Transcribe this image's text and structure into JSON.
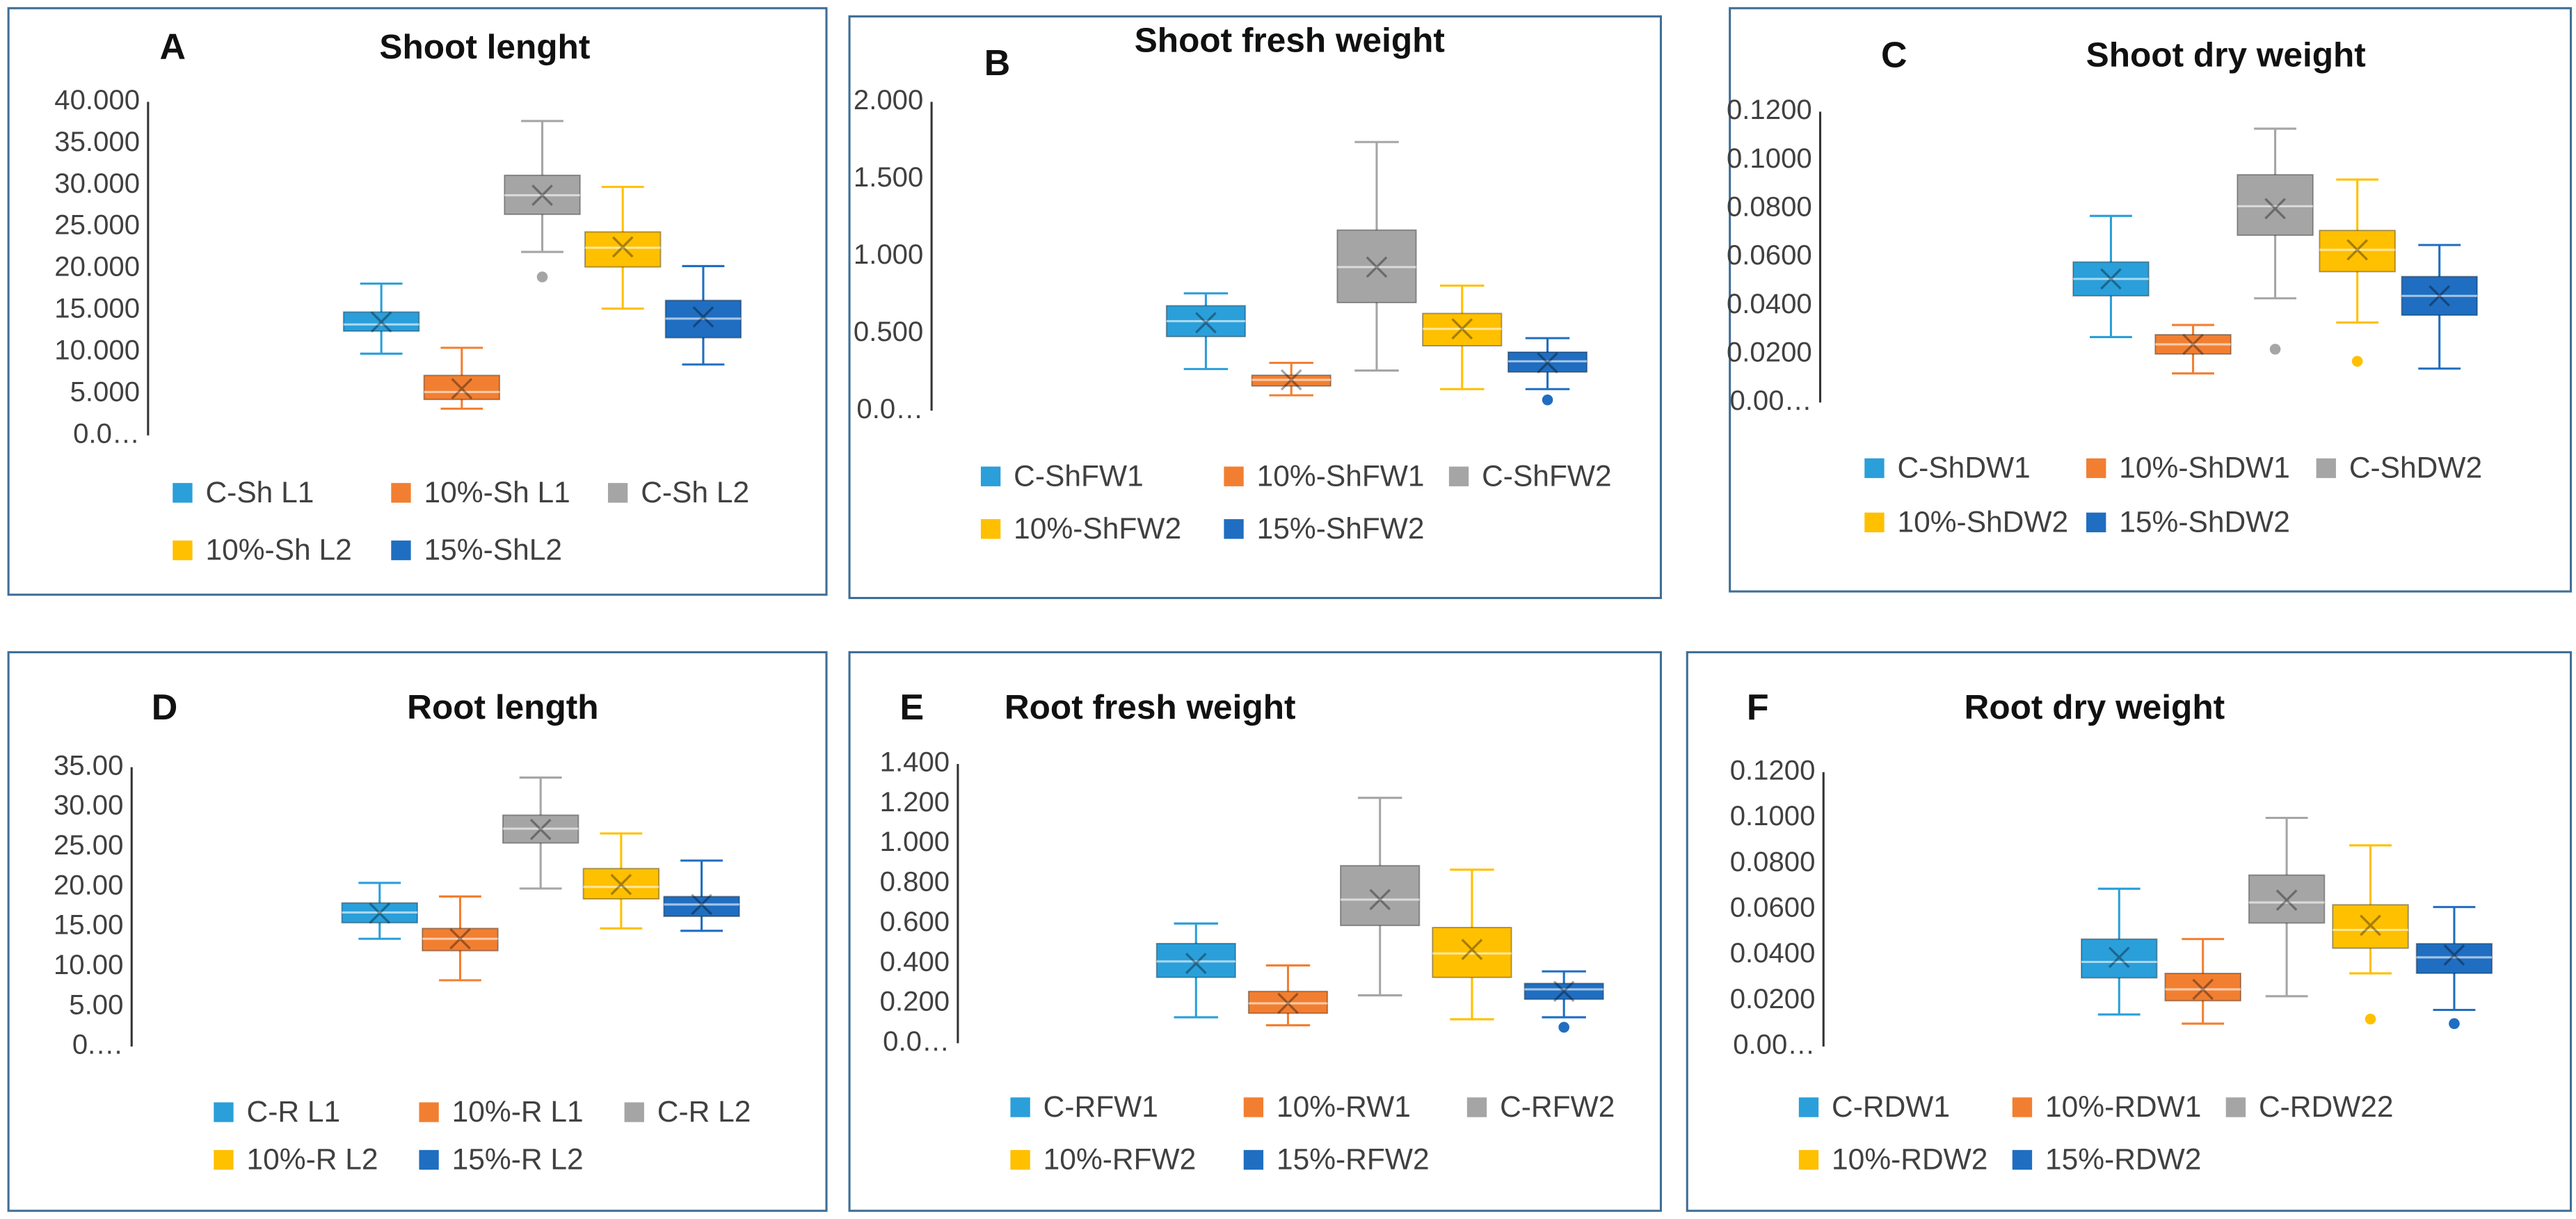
{
  "chart_data": [
    {
      "type": "box",
      "label": "A",
      "title": "Shoot lenght",
      "ylim": [
        0,
        40
      ],
      "yticks": [
        {
          "value": 0,
          "label": "0.0…"
        },
        {
          "value": 5,
          "label": "5.000"
        },
        {
          "value": 10,
          "label": "10.000"
        },
        {
          "value": 15,
          "label": "15.000"
        },
        {
          "value": 20,
          "label": "20.000"
        },
        {
          "value": 25,
          "label": "25.000"
        },
        {
          "value": 30,
          "label": "30.000"
        },
        {
          "value": 35,
          "label": "35.000"
        },
        {
          "value": 40,
          "label": "40.000"
        }
      ],
      "series": [
        {
          "name": "C-Sh L1",
          "color": "#2A9FDA",
          "min": 9.8,
          "q1": 12.5,
          "median": 13.3,
          "q3": 14.8,
          "max": 18.2,
          "mean": 13.6,
          "outliers": []
        },
        {
          "name": "10%-Sh L1",
          "color": "#F27F31",
          "min": 3.2,
          "q1": 4.3,
          "median": 5.2,
          "q3": 7.2,
          "max": 10.5,
          "mean": 5.6,
          "outliers": []
        },
        {
          "name": "C-Sh L2",
          "color": "#A5A5A5",
          "min": 22,
          "q1": 26.5,
          "median": 28.8,
          "q3": 31.2,
          "max": 37.7,
          "mean": 28.8,
          "outliers": [
            19
          ]
        },
        {
          "name": "10%-Sh L2",
          "color": "#FFC000",
          "min": 15.2,
          "q1": 20.2,
          "median": 22.5,
          "q3": 24.4,
          "max": 29.8,
          "mean": 22.6,
          "outliers": []
        },
        {
          "name": "15%-ShL2",
          "color": "#1F6EC1",
          "min": 8.5,
          "q1": 11.7,
          "median": 14,
          "q3": 16.2,
          "max": 20.3,
          "mean": 14.2,
          "outliers": []
        }
      ]
    },
    {
      "type": "box",
      "label": "B",
      "title": "Shoot fresh weight",
      "ylim": [
        0,
        2
      ],
      "yticks": [
        {
          "value": 0,
          "label": "0.0…"
        },
        {
          "value": 0.5,
          "label": "0.500"
        },
        {
          "value": 1,
          "label": "1.000"
        },
        {
          "value": 1.5,
          "label": "1.500"
        },
        {
          "value": 2,
          "label": "2.000"
        }
      ],
      "series": [
        {
          "name": "C-ShFW1",
          "color": "#2A9FDA",
          "min": 0.27,
          "q1": 0.48,
          "median": 0.58,
          "q3": 0.68,
          "max": 0.76,
          "mean": 0.57,
          "outliers": []
        },
        {
          "name": "10%-ShFW1",
          "color": "#F27F31",
          "min": 0.1,
          "q1": 0.16,
          "median": 0.2,
          "q3": 0.23,
          "max": 0.31,
          "mean": 0.2,
          "outliers": []
        },
        {
          "name": "C-ShFW2",
          "color": "#A5A5A5",
          "min": 0.26,
          "q1": 0.7,
          "median": 0.93,
          "q3": 1.17,
          "max": 1.74,
          "mean": 0.93,
          "outliers": []
        },
        {
          "name": "10%-ShFW2",
          "color": "#FFC000",
          "min": 0.14,
          "q1": 0.42,
          "median": 0.53,
          "q3": 0.63,
          "max": 0.81,
          "mean": 0.53,
          "outliers": []
        },
        {
          "name": "15%-ShFW2",
          "color": "#1F6EC1",
          "min": 0.14,
          "q1": 0.25,
          "median": 0.32,
          "q3": 0.38,
          "max": 0.47,
          "mean": 0.31,
          "outliers": [
            0.07
          ]
        }
      ]
    },
    {
      "type": "box",
      "label": "C",
      "title": "Shoot dry weight",
      "ylim": [
        0,
        0.12
      ],
      "yticks": [
        {
          "value": 0,
          "label": "0.00…"
        },
        {
          "value": 0.02,
          "label": "0.0200"
        },
        {
          "value": 0.04,
          "label": "0.0400"
        },
        {
          "value": 0.06,
          "label": "0.0600"
        },
        {
          "value": 0.08,
          "label": "0.0800"
        },
        {
          "value": 0.1,
          "label": "0.1000"
        },
        {
          "value": 0.12,
          "label": "0.1200"
        }
      ],
      "series": [
        {
          "name": "C-ShDW1",
          "color": "#2A9FDA",
          "min": 0.027,
          "q1": 0.044,
          "median": 0.051,
          "q3": 0.058,
          "max": 0.077,
          "mean": 0.051,
          "outliers": []
        },
        {
          "name": "10%-ShDW1",
          "color": "#F27F31",
          "min": 0.012,
          "q1": 0.02,
          "median": 0.024,
          "q3": 0.028,
          "max": 0.032,
          "mean": 0.024,
          "outliers": []
        },
        {
          "name": "C-ShDW2",
          "color": "#A5A5A5",
          "min": 0.043,
          "q1": 0.069,
          "median": 0.081,
          "q3": 0.094,
          "max": 0.113,
          "mean": 0.08,
          "outliers": [
            0.022
          ]
        },
        {
          "name": "10%-ShDW2",
          "color": "#FFC000",
          "min": 0.033,
          "q1": 0.054,
          "median": 0.063,
          "q3": 0.071,
          "max": 0.092,
          "mean": 0.063,
          "outliers": [
            0.017
          ]
        },
        {
          "name": "15%-ShDW2",
          "color": "#1F6EC1",
          "min": 0.014,
          "q1": 0.036,
          "median": 0.044,
          "q3": 0.052,
          "max": 0.065,
          "mean": 0.044,
          "outliers": []
        }
      ]
    },
    {
      "type": "box",
      "label": "D",
      "title": "Root length",
      "ylim": [
        0,
        35
      ],
      "yticks": [
        {
          "value": 0,
          "label": "0.…"
        },
        {
          "value": 5,
          "label": "5.00"
        },
        {
          "value": 10,
          "label": "10.00"
        },
        {
          "value": 15,
          "label": "15.00"
        },
        {
          "value": 20,
          "label": "20.00"
        },
        {
          "value": 25,
          "label": "25.00"
        },
        {
          "value": 30,
          "label": "30.00"
        },
        {
          "value": 35,
          "label": "35.00"
        }
      ],
      "series": [
        {
          "name": "C-R L1",
          "color": "#2A9FDA",
          "min": 13.5,
          "q1": 15.5,
          "median": 16.8,
          "q3": 18,
          "max": 20.5,
          "mean": 16.7,
          "outliers": []
        },
        {
          "name": "10%-R L1",
          "color": "#F27F31",
          "min": 8.3,
          "q1": 12,
          "median": 13.5,
          "q3": 14.8,
          "max": 18.8,
          "mean": 13.5,
          "outliers": []
        },
        {
          "name": "C-R L2",
          "color": "#A5A5A5",
          "min": 19.8,
          "q1": 25.5,
          "median": 27.3,
          "q3": 29,
          "max": 33.7,
          "mean": 27.2,
          "outliers": []
        },
        {
          "name": "10%-R L2",
          "color": "#FFC000",
          "min": 14.8,
          "q1": 18.5,
          "median": 20,
          "q3": 22.3,
          "max": 26.7,
          "mean": 20.3,
          "outliers": []
        },
        {
          "name": "15%-R L2",
          "color": "#1F6EC1",
          "min": 14.5,
          "q1": 16.3,
          "median": 17.8,
          "q3": 18.8,
          "max": 23.3,
          "mean": 17.8,
          "outliers": []
        }
      ]
    },
    {
      "type": "box",
      "label": "E",
      "title": "Root fresh weight",
      "ylim": [
        0,
        1.4
      ],
      "yticks": [
        {
          "value": 0,
          "label": "0.0…"
        },
        {
          "value": 0.2,
          "label": "0.200"
        },
        {
          "value": 0.4,
          "label": "0.400"
        },
        {
          "value": 0.6,
          "label": "0.600"
        },
        {
          "value": 0.8,
          "label": "0.800"
        },
        {
          "value": 1,
          "label": "1.000"
        },
        {
          "value": 1.2,
          "label": "1.200"
        },
        {
          "value": 1.4,
          "label": "1.400"
        }
      ],
      "series": [
        {
          "name": "C-RFW1",
          "color": "#2A9FDA",
          "min": 0.13,
          "q1": 0.33,
          "median": 0.41,
          "q3": 0.5,
          "max": 0.6,
          "mean": 0.4,
          "outliers": []
        },
        {
          "name": "10%-RW1",
          "color": "#F27F31",
          "min": 0.09,
          "q1": 0.15,
          "median": 0.2,
          "q3": 0.26,
          "max": 0.39,
          "mean": 0.2,
          "outliers": []
        },
        {
          "name": "C-RFW2",
          "color": "#A5A5A5",
          "min": 0.24,
          "q1": 0.59,
          "median": 0.72,
          "q3": 0.89,
          "max": 1.23,
          "mean": 0.72,
          "outliers": []
        },
        {
          "name": "10%-RFW2",
          "color": "#FFC000",
          "min": 0.12,
          "q1": 0.33,
          "median": 0.45,
          "q3": 0.58,
          "max": 0.87,
          "mean": 0.47,
          "outliers": []
        },
        {
          "name": "15%-RFW2",
          "color": "#1F6EC1",
          "min": 0.13,
          "q1": 0.22,
          "median": 0.27,
          "q3": 0.3,
          "max": 0.36,
          "mean": 0.26,
          "outliers": [
            0.08
          ]
        }
      ]
    },
    {
      "type": "box",
      "label": "F",
      "title": "Root dry weight",
      "ylim": [
        0,
        0.12
      ],
      "yticks": [
        {
          "value": 0,
          "label": "0.00…"
        },
        {
          "value": 0.02,
          "label": "0.0200"
        },
        {
          "value": 0.04,
          "label": "0.0400"
        },
        {
          "value": 0.06,
          "label": "0.0600"
        },
        {
          "value": 0.08,
          "label": "0.0800"
        },
        {
          "value": 0.1,
          "label": "0.1000"
        },
        {
          "value": 0.12,
          "label": "0.1200"
        }
      ],
      "series": [
        {
          "name": "C-RDW1",
          "color": "#2A9FDA",
          "min": 0.014,
          "q1": 0.03,
          "median": 0.037,
          "q3": 0.047,
          "max": 0.069,
          "mean": 0.039,
          "outliers": []
        },
        {
          "name": "10%-RDW1",
          "color": "#F27F31",
          "min": 0.01,
          "q1": 0.02,
          "median": 0.025,
          "q3": 0.032,
          "max": 0.047,
          "mean": 0.025,
          "outliers": []
        },
        {
          "name": "C-RDW22",
          "color": "#A5A5A5",
          "min": 0.022,
          "q1": 0.054,
          "median": 0.063,
          "q3": 0.075,
          "max": 0.1,
          "mean": 0.064,
          "outliers": []
        },
        {
          "name": "10%-RDW2",
          "color": "#FFC000",
          "min": 0.032,
          "q1": 0.043,
          "median": 0.051,
          "q3": 0.062,
          "max": 0.088,
          "mean": 0.053,
          "outliers": [
            0.012
          ]
        },
        {
          "name": "15%-RDW2",
          "color": "#1F6EC1",
          "min": 0.016,
          "q1": 0.032,
          "median": 0.039,
          "q3": 0.045,
          "max": 0.061,
          "mean": 0.04,
          "outliers": [
            0.01
          ]
        }
      ]
    }
  ]
}
